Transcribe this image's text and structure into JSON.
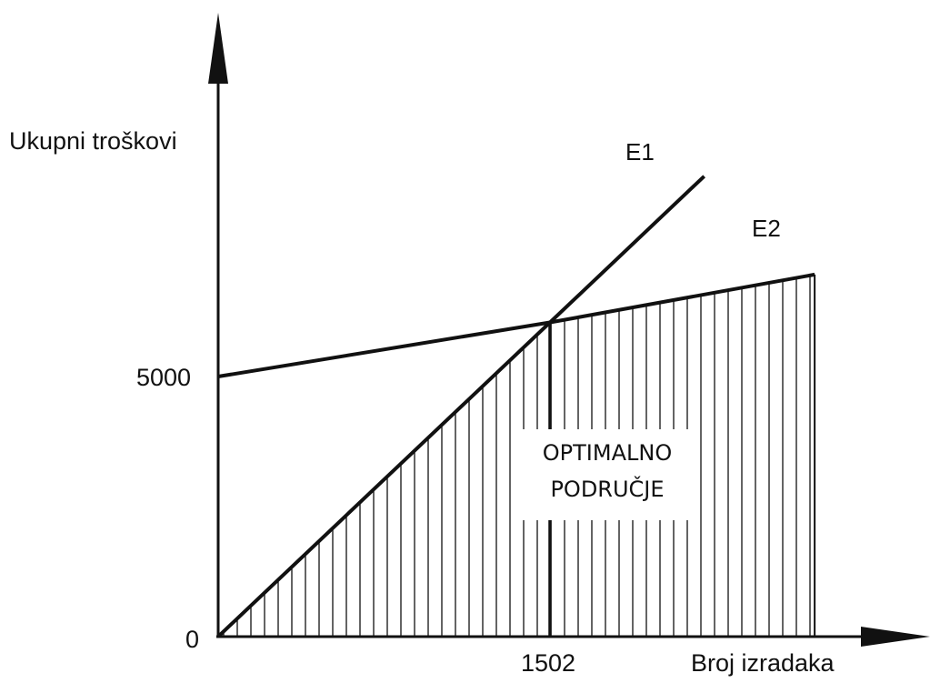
{
  "chart_data": {
    "type": "line",
    "title": "",
    "xlabel": "Broj izradaka",
    "ylabel": "Ukupni troškovi",
    "x_ticks": [
      "0",
      "1502"
    ],
    "y_ticks": [
      "0",
      "5000"
    ],
    "series": [
      {
        "name": "E1",
        "x": [
          0,
          1502,
          2200
        ],
        "y": [
          0,
          6040,
          8850
        ]
      },
      {
        "name": "E2",
        "x": [
          0,
          1502,
          2700
        ],
        "y": [
          5000,
          6040,
          6960
        ]
      }
    ],
    "intersection": {
      "x": 1502,
      "y": 6040
    },
    "shaded_region": {
      "label_lines": [
        "OPTIMALNO",
        "PODRUČJE"
      ],
      "x_range": [
        0,
        2700
      ],
      "fill": "vertical-hatch"
    },
    "grid": false,
    "colors": {
      "line": "#111111",
      "background": "#ffffff"
    }
  }
}
